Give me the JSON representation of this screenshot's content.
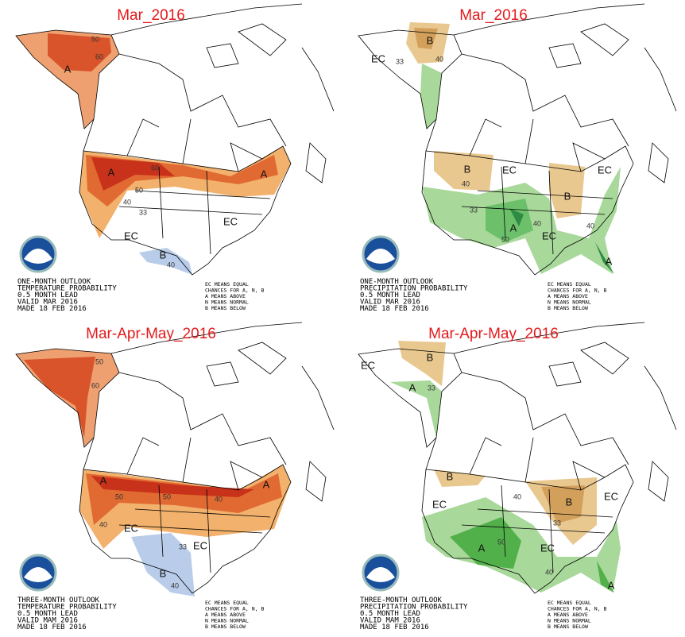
{
  "panels": [
    {
      "title": "Mar_2016",
      "caption": [
        "ONE-MONTH OUTLOOK",
        "TEMPERATURE PROBABILITY",
        "0.5 MONTH LEAD",
        "VALID MAR 2016",
        "MADE 18 FEB 2016"
      ],
      "legend": [
        "EC MEANS EQUAL",
        "CHANCES FOR A, N, B",
        "A MEANS ABOVE",
        "N MEANS NORMAL",
        "B MEANS BELOW"
      ],
      "labels": [
        "A",
        "50",
        "60",
        "A",
        "A",
        "60",
        "50",
        "40",
        "33",
        "EC",
        "EC",
        "B",
        "40"
      ]
    },
    {
      "title": "Mar_2016",
      "caption": [
        "ONE-MONTH OUTLOOK",
        "PRECIPITATION PROBABILITY",
        "0.5 MONTH LEAD",
        "VALID MAR 2016",
        "MADE 18 FEB 2016"
      ],
      "legend": [
        "EC MEANS EQUAL",
        "CHANCES FOR A, N, B",
        "A MEANS ABOVE",
        "N MEANS NORMAL",
        "B MEANS BELOW"
      ],
      "labels": [
        "B",
        "40",
        "EC",
        "33",
        "B",
        "40",
        "EC",
        "B",
        "EC",
        "A",
        "50",
        "40",
        "33",
        "EC",
        "40",
        "A"
      ]
    },
    {
      "title": "Mar-Apr-May_2016",
      "caption": [
        "THREE-MONTH OUTLOOK",
        "TEMPERATURE PROBABILITY",
        "0.5 MONTH LEAD",
        "VALID MAM 2016",
        "MADE 18 FEB 2016"
      ],
      "legend": [
        "EC MEANS EQUAL",
        "CHANCES FOR A, N, B",
        "A MEANS ABOVE",
        "N MEANS NORMAL",
        "B MEANS BELOW"
      ],
      "labels": [
        "50",
        "60",
        "A",
        "A",
        "50",
        "40",
        "50",
        "40",
        "EC",
        "EC",
        "33",
        "B",
        "40"
      ]
    },
    {
      "title": "Mar-Apr-May_2016",
      "caption": [
        "THREE-MONTH OUTLOOK",
        "PRECIPITATION PROBABILITY",
        "0.5 MONTH LEAD",
        "VALID MAM 2016",
        "MADE 18 FEB 2016"
      ],
      "legend": [
        "EC MEANS EQUAL",
        "CHANCES FOR A, N, B",
        "A MEANS ABOVE",
        "N MEANS NORMAL",
        "B MEANS BELOW"
      ],
      "labels": [
        "EC",
        "B",
        "A",
        "33",
        "B",
        "EC",
        "B",
        "33",
        "40",
        "EC",
        "A",
        "50",
        "40",
        "EC",
        "A"
      ]
    }
  ]
}
